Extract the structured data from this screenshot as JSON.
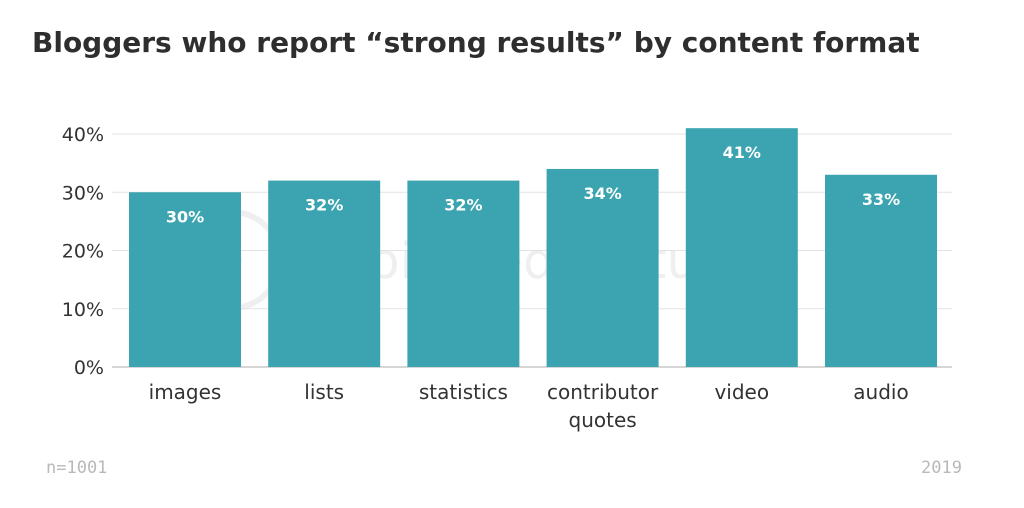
{
  "chart_data": {
    "type": "bar",
    "title": "Bloggers who report “strong results” by content format",
    "categories": [
      [
        "images"
      ],
      [
        "lists"
      ],
      [
        "statistics"
      ],
      [
        "contributor",
        "quotes"
      ],
      [
        "video"
      ],
      [
        "audio"
      ]
    ],
    "values": [
      30,
      32,
      32,
      34,
      41,
      33
    ],
    "value_labels": [
      "30%",
      "32%",
      "32%",
      "34%",
      "41%",
      "33%"
    ],
    "ylim": [
      0,
      40
    ],
    "yticks": [
      0,
      10,
      20,
      30,
      40
    ],
    "ytick_labels": [
      "0%",
      "10%",
      "20%",
      "30%",
      "40%"
    ],
    "xlabel": "",
    "ylabel": "",
    "grid": true,
    "bar_color": "#3ba4b0",
    "watermark": "Orbit Media Studios"
  },
  "footer": {
    "sample": "n=1001",
    "year": "2019"
  }
}
